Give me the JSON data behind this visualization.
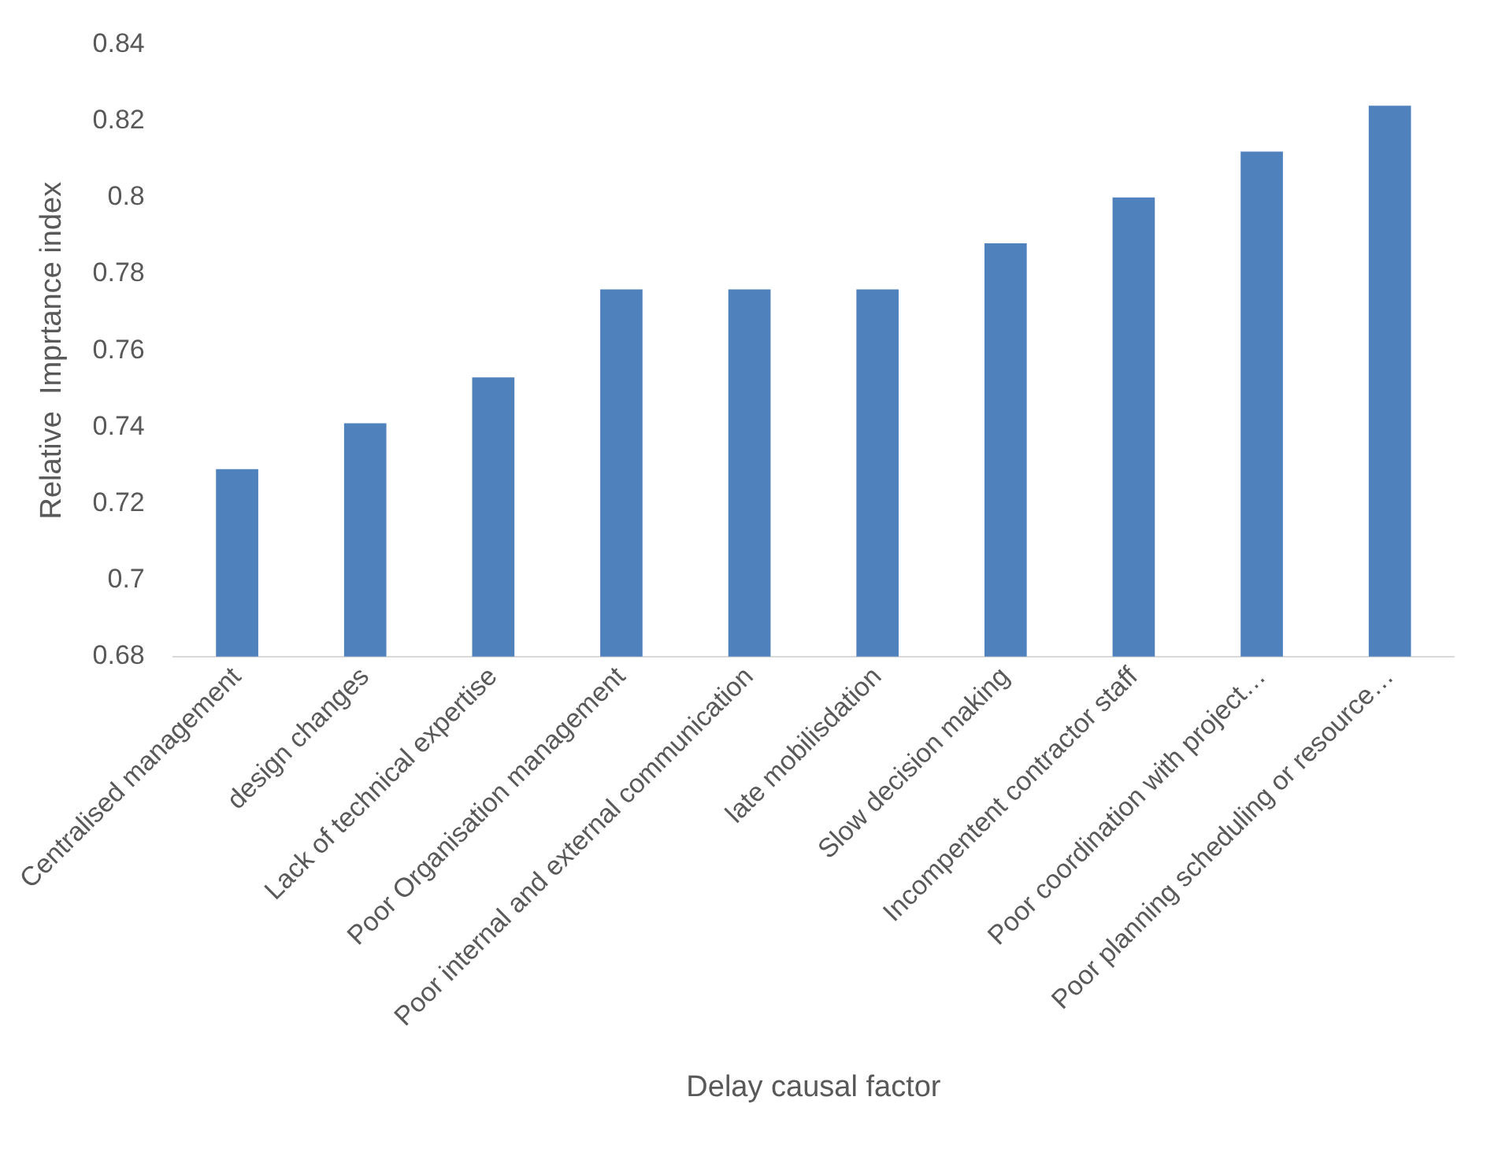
{
  "chart_data": {
    "type": "bar",
    "xlabel": "Delay causal factor",
    "ylabel": "Relative  Imprtance index",
    "categories": [
      "Centralised management",
      "design changes",
      "Lack of technical expertise",
      "Poor Organisation management",
      "Poor internal and external communication",
      "late mobilisdation",
      "Slow decision making",
      "Incompentent contractor staff",
      "Poor coordination with project…",
      "Poor planning scheduling or resource…"
    ],
    "values": [
      0.729,
      0.741,
      0.753,
      0.776,
      0.776,
      0.776,
      0.788,
      0.8,
      0.812,
      0.824
    ],
    "color": "#4f81bd",
    "ylim": [
      0.68,
      0.84
    ],
    "yticks": [
      0.68,
      0.7,
      0.72,
      0.74,
      0.76,
      0.78,
      0.8,
      0.82,
      0.84
    ],
    "grid": false,
    "legend": false
  }
}
